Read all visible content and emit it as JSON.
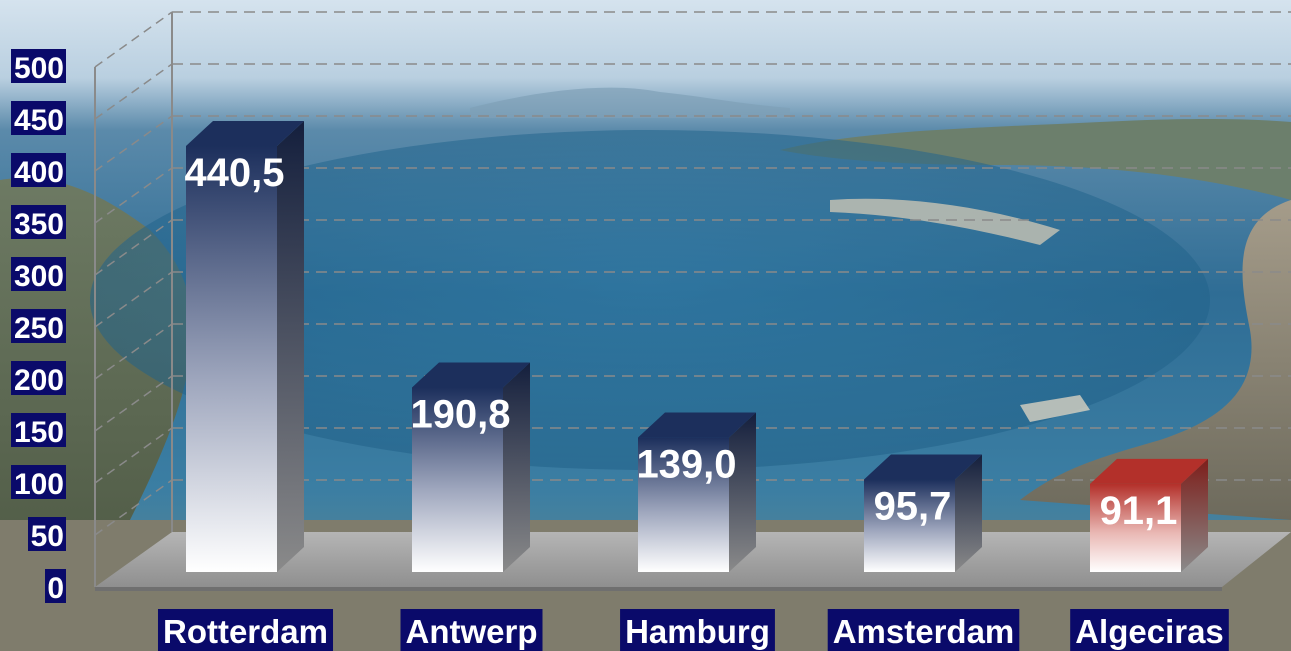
{
  "chart_data": {
    "type": "bar",
    "title": "",
    "xlabel": "",
    "ylabel": "",
    "categories": [
      "Rotterdam",
      "Antwerp",
      "Hamburg",
      "Amsterdam",
      "Algeciras"
    ],
    "values": [
      440.5,
      190.8,
      139.0,
      95.7,
      91.1
    ],
    "value_labels": [
      "440,5",
      "190,8",
      "139,0",
      "95,7",
      "91,1"
    ],
    "y_ticks": [
      "0",
      "50",
      "100",
      "150",
      "200",
      "250",
      "300",
      "350",
      "400",
      "450",
      "500"
    ],
    "ylim": [
      0,
      500
    ],
    "grid": true,
    "legend": "none",
    "bar_style": "3d-gradient",
    "colors": {
      "bar_top": "#1c2f5c",
      "bar_bottom": "#ffffff",
      "highlight_top": "#b3302a",
      "label_box": "#0a0a6a",
      "floor": "#9a9a9a"
    },
    "highlight_index": 4
  }
}
